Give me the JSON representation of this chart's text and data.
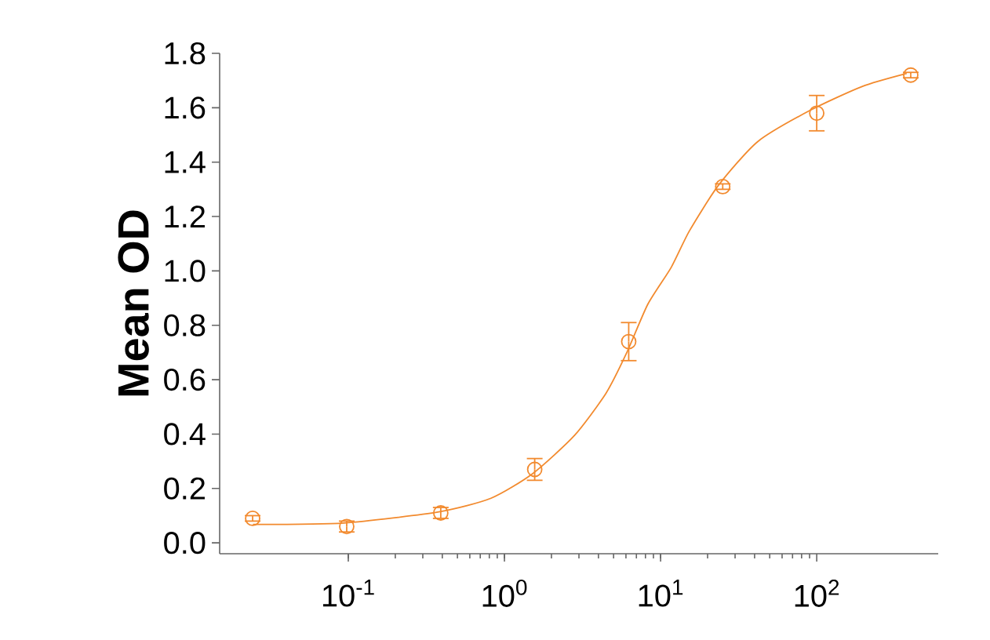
{
  "chart_data": {
    "type": "scatter",
    "ylabel": "Mean OD",
    "log": "x",
    "marker": "circle",
    "grid": false,
    "xlim": [
      0.015,
      600
    ],
    "ylim": [
      -0.04,
      1.8
    ],
    "xticks": [
      {
        "value": 0.1,
        "label": "10$^{-1}$"
      },
      {
        "value": 1,
        "label": "10$^{0}$"
      },
      {
        "value": 10,
        "label": "10$^{1}$"
      },
      {
        "value": 100,
        "label": "10$^{2}$"
      }
    ],
    "yticks": [
      {
        "value": 0,
        "label": "0.0"
      },
      0.2,
      0.4,
      0.6,
      0.8,
      {
        "value": 1,
        "label": "1.0"
      },
      1.2,
      1.4,
      1.6,
      1.8
    ],
    "series": [
      {
        "color": "#f28a2e",
        "x": [
          0.0244,
          0.0977,
          0.391,
          1.5625,
          6.25,
          25,
          100,
          400
        ],
        "values": [
          0.09,
          0.06,
          0.11,
          0.27,
          0.74,
          1.31,
          1.58,
          1.72
        ],
        "errors": [
          0.01,
          0.02,
          0.02,
          0.04,
          0.07,
          0.01,
          0.065,
          0.01
        ]
      },
      {
        "type": "line",
        "color": "#f28a2e",
        "marker": "none",
        "x": [
          0.0245,
          0.094,
          0.38,
          0.82,
          1.52,
          2.81,
          4.47,
          6.08,
          8.28,
          11.7,
          15.3,
          23.5,
          41.8,
          90.5,
          195,
          377
        ],
        "values": [
          0.068,
          0.073,
          0.114,
          0.164,
          0.255,
          0.395,
          0.55,
          0.7,
          0.877,
          1.013,
          1.147,
          1.315,
          1.475,
          1.59,
          1.678,
          1.726
        ]
      }
    ]
  }
}
